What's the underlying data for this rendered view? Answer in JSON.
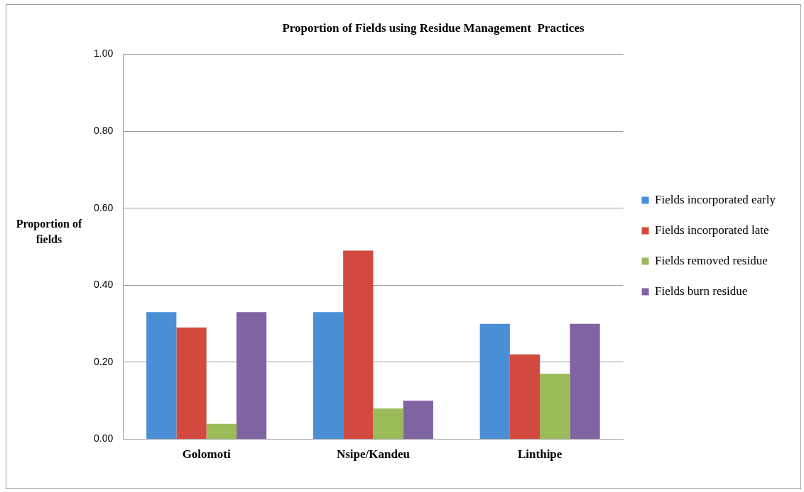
{
  "chart_data": {
    "type": "bar",
    "title": "Proportion of Fields using Residue Management  Practices",
    "ylabel": "Proportion of fields",
    "categories": [
      "Golomoti",
      "Nsipe/Kandeu",
      "Linthipe"
    ],
    "series": [
      {
        "name": "Fields incorporated early",
        "color": "#4a8fd6",
        "values": [
          0.33,
          0.33,
          0.3
        ]
      },
      {
        "name": "Fields incorporated late",
        "color": "#d24a3f",
        "values": [
          0.29,
          0.49,
          0.22
        ]
      },
      {
        "name": "Fields removed residue",
        "color": "#9bbb59",
        "values": [
          0.04,
          0.08,
          0.17
        ]
      },
      {
        "name": "Fields burn residue",
        "color": "#8064a2",
        "values": [
          0.33,
          0.1,
          0.3
        ]
      }
    ],
    "ylim": [
      0,
      1
    ],
    "yticks": [
      {
        "value": 0,
        "label": "0.00"
      },
      {
        "value": 0.2,
        "label": "0.20"
      },
      {
        "value": 0.4,
        "label": "0.40"
      },
      {
        "value": 0.6,
        "label": "0.60"
      },
      {
        "value": 0.8,
        "label": "0.80"
      },
      {
        "value": 1,
        "label": "1.00"
      }
    ],
    "grid": "y",
    "legend": "right"
  }
}
